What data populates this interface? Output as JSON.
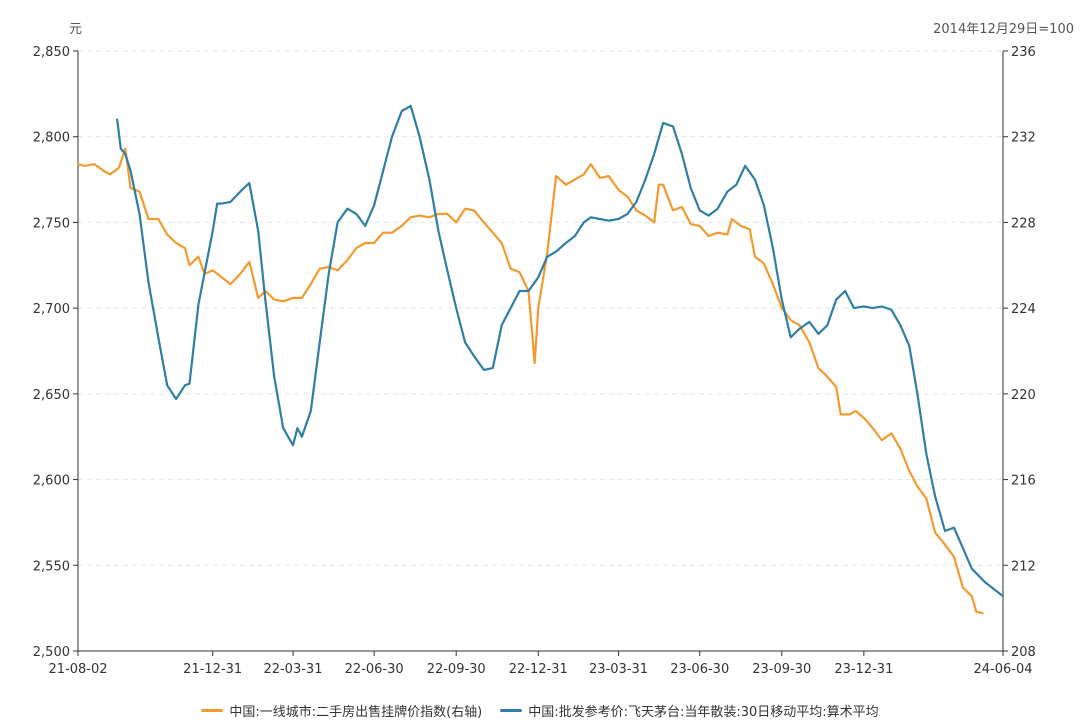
{
  "chart_data": {
    "type": "line",
    "left_axis_unit": "元",
    "right_axis_unit": "2014年12月29日=100",
    "x_ticks": [
      "21-08-02",
      "21-12-31",
      "22-03-31",
      "22-06-30",
      "22-09-30",
      "22-12-31",
      "23-03-31",
      "23-06-30",
      "23-09-30",
      "23-12-31",
      "24-06-04"
    ],
    "x_tick_dates": [
      "2021-08-02",
      "2021-12-31",
      "2022-03-31",
      "2022-06-30",
      "2022-09-30",
      "2022-12-31",
      "2023-03-31",
      "2023-06-30",
      "2023-09-30",
      "2023-12-31",
      "2024-06-04"
    ],
    "x_range": [
      "2021-08-02",
      "2024-06-04"
    ],
    "y_left": {
      "min": 2500,
      "max": 2850,
      "ticks": [
        "2,500",
        "2,550",
        "2,600",
        "2,650",
        "2,700",
        "2,750",
        "2,800",
        "2,850"
      ]
    },
    "y_right": {
      "min": 208,
      "max": 236,
      "ticks": [
        "208",
        "212",
        "216",
        "220",
        "224",
        "228",
        "232",
        "236"
      ]
    },
    "grid": true,
    "legend_position": "bottom",
    "colors": {
      "orange": "#f39a2f",
      "blue": "#2e7fa3"
    },
    "series": [
      {
        "name": "中国:一线城市:二手房出售挂牌价指数(右轴)",
        "axis": "right",
        "color": "#f39a2f",
        "points": [
          [
            "2021-08-02",
            2784
          ],
          [
            "2021-08-10",
            2783
          ],
          [
            "2021-08-20",
            2784
          ],
          [
            "2021-08-31",
            2780
          ],
          [
            "2021-09-07",
            2778
          ],
          [
            "2021-09-17",
            2782
          ],
          [
            "2021-09-24",
            2793
          ],
          [
            "2021-09-30",
            2770
          ],
          [
            "2021-10-10",
            2768
          ],
          [
            "2021-10-20",
            2752
          ],
          [
            "2021-10-31",
            2752
          ],
          [
            "2021-11-10",
            2743
          ],
          [
            "2021-11-20",
            2738
          ],
          [
            "2021-11-30",
            2735
          ],
          [
            "2021-12-05",
            2725
          ],
          [
            "2021-12-15",
            2730
          ],
          [
            "2021-12-22",
            2720
          ],
          [
            "2021-12-31",
            2722
          ],
          [
            "2022-01-10",
            2718
          ],
          [
            "2022-01-20",
            2714
          ],
          [
            "2022-01-31",
            2720
          ],
          [
            "2022-02-10",
            2727
          ],
          [
            "2022-02-20",
            2706
          ],
          [
            "2022-02-28",
            2710
          ],
          [
            "2022-03-10",
            2705
          ],
          [
            "2022-03-20",
            2704
          ],
          [
            "2022-03-31",
            2706
          ],
          [
            "2022-04-10",
            2706
          ],
          [
            "2022-04-20",
            2714
          ],
          [
            "2022-04-30",
            2723
          ],
          [
            "2022-05-10",
            2724
          ],
          [
            "2022-05-20",
            2722
          ],
          [
            "2022-05-31",
            2728
          ],
          [
            "2022-06-10",
            2735
          ],
          [
            "2022-06-20",
            2738
          ],
          [
            "2022-06-30",
            2738
          ],
          [
            "2022-07-10",
            2744
          ],
          [
            "2022-07-20",
            2744
          ],
          [
            "2022-07-31",
            2748
          ],
          [
            "2022-08-10",
            2753
          ],
          [
            "2022-08-20",
            2754
          ],
          [
            "2022-08-31",
            2753
          ],
          [
            "2022-09-10",
            2755
          ],
          [
            "2022-09-20",
            2755
          ],
          [
            "2022-09-30",
            2750
          ],
          [
            "2022-10-10",
            2758
          ],
          [
            "2022-10-20",
            2757
          ],
          [
            "2022-10-31",
            2750
          ],
          [
            "2022-11-10",
            2744
          ],
          [
            "2022-11-20",
            2738
          ],
          [
            "2022-11-30",
            2723
          ],
          [
            "2022-12-10",
            2721
          ],
          [
            "2022-12-20",
            2710
          ],
          [
            "2022-12-27",
            2668
          ],
          [
            "2022-12-31",
            2700
          ],
          [
            "2023-01-10",
            2732
          ],
          [
            "2023-01-20",
            2777
          ],
          [
            "2023-01-31",
            2772
          ],
          [
            "2023-02-10",
            2775
          ],
          [
            "2023-02-20",
            2778
          ],
          [
            "2023-02-28",
            2784
          ],
          [
            "2023-03-10",
            2776
          ],
          [
            "2023-03-20",
            2777
          ],
          [
            "2023-03-31",
            2769
          ],
          [
            "2023-04-10",
            2765
          ],
          [
            "2023-04-20",
            2757
          ],
          [
            "2023-04-30",
            2754
          ],
          [
            "2023-05-10",
            2750
          ],
          [
            "2023-05-15",
            2772
          ],
          [
            "2023-05-20",
            2772
          ],
          [
            "2023-05-31",
            2757
          ],
          [
            "2023-06-10",
            2759
          ],
          [
            "2023-06-20",
            2749
          ],
          [
            "2023-06-30",
            2748
          ],
          [
            "2023-07-10",
            2742
          ],
          [
            "2023-07-20",
            2744
          ],
          [
            "2023-07-31",
            2743
          ],
          [
            "2023-08-05",
            2752
          ],
          [
            "2023-08-15",
            2748
          ],
          [
            "2023-08-25",
            2746
          ],
          [
            "2023-08-31",
            2730
          ],
          [
            "2023-09-10",
            2726
          ],
          [
            "2023-09-20",
            2714
          ],
          [
            "2023-09-30",
            2700
          ],
          [
            "2023-10-10",
            2693
          ],
          [
            "2023-10-20",
            2690
          ],
          [
            "2023-10-31",
            2680
          ],
          [
            "2023-11-10",
            2665
          ],
          [
            "2023-11-20",
            2660
          ],
          [
            "2023-11-30",
            2654
          ],
          [
            "2023-12-05",
            2638
          ],
          [
            "2023-12-15",
            2638
          ],
          [
            "2023-12-22",
            2640
          ],
          [
            "2023-12-31",
            2636
          ],
          [
            "2024-01-10",
            2630
          ],
          [
            "2024-01-20",
            2623
          ],
          [
            "2024-01-31",
            2627
          ],
          [
            "2024-02-10",
            2618
          ],
          [
            "2024-02-20",
            2605
          ],
          [
            "2024-02-29",
            2596
          ],
          [
            "2024-03-10",
            2589
          ],
          [
            "2024-03-20",
            2569
          ],
          [
            "2024-03-31",
            2562
          ],
          [
            "2024-04-10",
            2555
          ],
          [
            "2024-04-20",
            2537
          ],
          [
            "2024-04-30",
            2532
          ],
          [
            "2024-05-05",
            2523
          ],
          [
            "2024-05-12",
            2522
          ]
        ]
      },
      {
        "name": "中国:批发参考价:飞天茅台:当年散装:30日移动平均:算术平均",
        "axis": "left",
        "color": "#2e7fa3",
        "points": [
          [
            "2021-09-15",
            2810
          ],
          [
            "2021-09-19",
            2793
          ],
          [
            "2021-09-24",
            2790
          ],
          [
            "2021-09-30",
            2780
          ],
          [
            "2021-10-10",
            2755
          ],
          [
            "2021-10-20",
            2715
          ],
          [
            "2021-10-31",
            2683
          ],
          [
            "2021-11-10",
            2655
          ],
          [
            "2021-11-20",
            2647
          ],
          [
            "2021-11-30",
            2655
          ],
          [
            "2021-12-05",
            2656
          ],
          [
            "2021-12-15",
            2702
          ],
          [
            "2021-12-31",
            2745
          ],
          [
            "2022-01-05",
            2761
          ],
          [
            "2022-01-10",
            2761
          ],
          [
            "2022-01-20",
            2762
          ],
          [
            "2022-01-31",
            2768
          ],
          [
            "2022-02-10",
            2773
          ],
          [
            "2022-02-20",
            2745
          ],
          [
            "2022-02-28",
            2705
          ],
          [
            "2022-03-10",
            2660
          ],
          [
            "2022-03-20",
            2630
          ],
          [
            "2022-03-31",
            2620
          ],
          [
            "2022-04-05",
            2630
          ],
          [
            "2022-04-10",
            2625
          ],
          [
            "2022-04-20",
            2640
          ],
          [
            "2022-04-30",
            2680
          ],
          [
            "2022-05-10",
            2720
          ],
          [
            "2022-05-20",
            2750
          ],
          [
            "2022-05-31",
            2758
          ],
          [
            "2022-06-10",
            2755
          ],
          [
            "2022-06-20",
            2748
          ],
          [
            "2022-06-30",
            2760
          ],
          [
            "2022-07-10",
            2780
          ],
          [
            "2022-07-20",
            2800
          ],
          [
            "2022-07-31",
            2815
          ],
          [
            "2022-08-10",
            2818
          ],
          [
            "2022-08-20",
            2800
          ],
          [
            "2022-08-31",
            2775
          ],
          [
            "2022-09-10",
            2745
          ],
          [
            "2022-09-20",
            2722
          ],
          [
            "2022-09-30",
            2700
          ],
          [
            "2022-10-10",
            2680
          ],
          [
            "2022-10-20",
            2672
          ],
          [
            "2022-10-31",
            2664
          ],
          [
            "2022-11-10",
            2665
          ],
          [
            "2022-11-20",
            2690
          ],
          [
            "2022-11-30",
            2700
          ],
          [
            "2022-12-10",
            2710
          ],
          [
            "2022-12-20",
            2710
          ],
          [
            "2022-12-31",
            2718
          ],
          [
            "2023-01-10",
            2730
          ],
          [
            "2023-01-20",
            2733
          ],
          [
            "2023-01-31",
            2738
          ],
          [
            "2023-02-10",
            2742
          ],
          [
            "2023-02-20",
            2750
          ],
          [
            "2023-02-28",
            2753
          ],
          [
            "2023-03-10",
            2752
          ],
          [
            "2023-03-20",
            2751
          ],
          [
            "2023-03-31",
            2752
          ],
          [
            "2023-04-10",
            2755
          ],
          [
            "2023-04-20",
            2762
          ],
          [
            "2023-04-30",
            2775
          ],
          [
            "2023-05-10",
            2790
          ],
          [
            "2023-05-20",
            2808
          ],
          [
            "2023-05-31",
            2806
          ],
          [
            "2023-06-10",
            2790
          ],
          [
            "2023-06-20",
            2770
          ],
          [
            "2023-06-30",
            2757
          ],
          [
            "2023-07-10",
            2754
          ],
          [
            "2023-07-20",
            2758
          ],
          [
            "2023-07-31",
            2768
          ],
          [
            "2023-08-10",
            2772
          ],
          [
            "2023-08-20",
            2783
          ],
          [
            "2023-08-31",
            2775
          ],
          [
            "2023-09-10",
            2760
          ],
          [
            "2023-09-20",
            2735
          ],
          [
            "2023-09-30",
            2705
          ],
          [
            "2023-10-10",
            2683
          ],
          [
            "2023-10-20",
            2688
          ],
          [
            "2023-10-31",
            2692
          ],
          [
            "2023-11-10",
            2685
          ],
          [
            "2023-11-20",
            2690
          ],
          [
            "2023-11-30",
            2705
          ],
          [
            "2023-12-10",
            2710
          ],
          [
            "2023-12-20",
            2700
          ],
          [
            "2023-12-31",
            2701
          ],
          [
            "2024-01-10",
            2700
          ],
          [
            "2024-01-20",
            2701
          ],
          [
            "2024-01-31",
            2699
          ],
          [
            "2024-02-10",
            2690
          ],
          [
            "2024-02-20",
            2678
          ],
          [
            "2024-02-29",
            2650
          ],
          [
            "2024-03-10",
            2615
          ],
          [
            "2024-03-20",
            2590
          ],
          [
            "2024-03-31",
            2570
          ],
          [
            "2024-04-10",
            2572
          ],
          [
            "2024-04-20",
            2560
          ],
          [
            "2024-04-30",
            2548
          ],
          [
            "2024-05-15",
            2540
          ],
          [
            "2024-06-04",
            2532
          ]
        ]
      }
    ]
  }
}
